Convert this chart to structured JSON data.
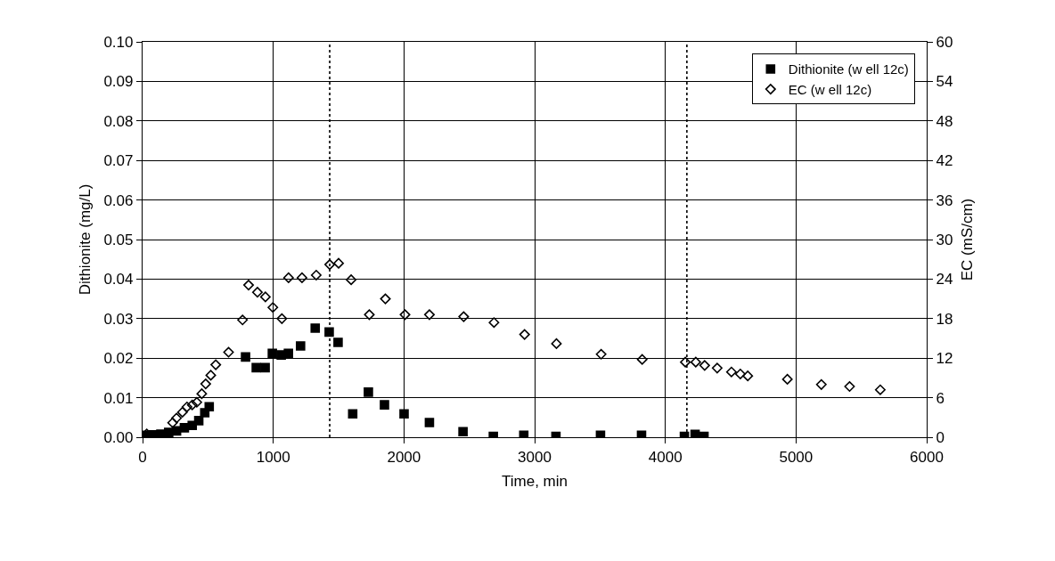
{
  "chart_data": {
    "type": "scatter",
    "xlabel": "Time, min",
    "ylabel": "Dithionite (mg/L)",
    "y2label": "EC (mS/cm)",
    "xlim": [
      0,
      6000
    ],
    "xticks": [
      0,
      1000,
      2000,
      3000,
      4000,
      5000,
      6000
    ],
    "ylim": [
      0,
      0.1
    ],
    "yticks": [
      {
        "value": 0,
        "label": "0.00"
      },
      {
        "value": 0.01,
        "label": "0.01"
      },
      {
        "value": 0.02,
        "label": "0.02"
      },
      {
        "value": 0.03,
        "label": "0.03"
      },
      {
        "value": 0.04,
        "label": "0.04"
      },
      {
        "value": 0.05,
        "label": "0.05"
      },
      {
        "value": 0.06,
        "label": "0.06"
      },
      {
        "value": 0.07,
        "label": "0.07"
      },
      {
        "value": 0.08,
        "label": "0.08"
      },
      {
        "value": 0.09,
        "label": "0.09"
      },
      {
        "value": 0.1,
        "label": "0.10"
      }
    ],
    "y2lim": [
      0,
      60
    ],
    "y2ticks": [
      0,
      6,
      12,
      18,
      24,
      30,
      36,
      42,
      48,
      54,
      60
    ],
    "grid": true,
    "legend": "top right",
    "ref_lines": [
      {
        "axis": "x",
        "value": 1432,
        "line_style": "dotted",
        "color": "#000000"
      },
      {
        "axis": "x",
        "value": 4165,
        "line_style": "dotted",
        "color": "#000000"
      }
    ],
    "series": [
      {
        "name": "Dithionite (w ell 12c)",
        "color": "#000000",
        "marker": "square",
        "x": [
          20,
          80,
          140,
          200,
          260,
          320,
          380,
          430,
          476,
          510,
          788,
          870,
          938,
          993,
          1061,
          1116,
          1209,
          1321,
          1428,
          1496,
          1608,
          1728,
          1851,
          2001,
          2195,
          2452,
          2684,
          2917,
          3163,
          3504,
          3818,
          4146,
          4228,
          4296
        ],
        "values": [
          0.0005,
          0.0006,
          0.0008,
          0.0012,
          0.0016,
          0.0024,
          0.003,
          0.0042,
          0.0062,
          0.0077,
          0.0203,
          0.0176,
          0.0176,
          0.0212,
          0.0208,
          0.0212,
          0.0231,
          0.0276,
          0.0266,
          0.024,
          0.0059,
          0.0114,
          0.0082,
          0.0059,
          0.0037,
          0.0014,
          0.0002,
          0.0005,
          0.0002,
          0.0005,
          0.0005,
          0.0002,
          0.0007,
          0.0002
        ]
      },
      {
        "name": "EC (w ell 12c)",
        "color": "#000000",
        "marker": "diamond",
        "axis": "y2",
        "x": [
          32,
          100,
          150,
          191,
          230,
          260,
          305,
          340,
          380,
          415,
          453,
          483,
          522,
          560,
          658,
          765,
          811,
          879,
          940,
          997,
          1066,
          1117,
          1220,
          1329,
          1432,
          1500,
          1596,
          1735,
          1858,
          2008,
          2195,
          2457,
          2689,
          2923,
          3167,
          3509,
          3823,
          4153,
          4233,
          4301,
          4397,
          4506,
          4574,
          4631,
          4934,
          5194,
          5410,
          5645
        ],
        "values": [
          0.5,
          null,
          null,
          null,
          2.2,
          2.9,
          3.8,
          4.6,
          4.9,
          5.3,
          6.6,
          8.1,
          9.4,
          11.0,
          12.9,
          17.8,
          23.1,
          22.0,
          21.3,
          19.7,
          18.0,
          24.2,
          24.2,
          24.6,
          26.2,
          26.4,
          23.9,
          18.6,
          21.0,
          18.6,
          18.6,
          18.3,
          17.4,
          15.6,
          14.2,
          12.6,
          11.8,
          11.4,
          11.4,
          10.9,
          10.5,
          9.9,
          9.6,
          9.3,
          8.8,
          8.0,
          7.7,
          7.2
        ]
      }
    ]
  }
}
